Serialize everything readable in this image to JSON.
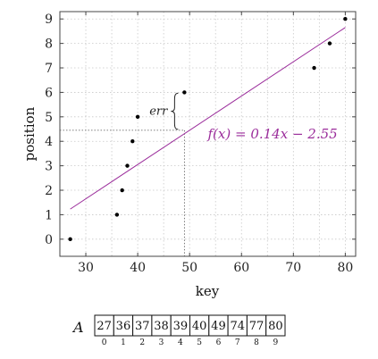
{
  "chart_data": {
    "type": "scatter",
    "xlabel": "key",
    "ylabel": "position",
    "xlim": [
      25,
      82
    ],
    "ylim": [
      -0.7,
      9.3
    ],
    "xticks": [
      30,
      40,
      50,
      60,
      70,
      80
    ],
    "yticks": [
      0,
      1,
      2,
      3,
      4,
      5,
      6,
      7,
      8,
      9
    ],
    "grid": true,
    "points": [
      {
        "x": 27,
        "y": 0
      },
      {
        "x": 36,
        "y": 1
      },
      {
        "x": 37,
        "y": 2
      },
      {
        "x": 38,
        "y": 3
      },
      {
        "x": 39,
        "y": 4
      },
      {
        "x": 40,
        "y": 5
      },
      {
        "x": 49,
        "y": 6
      },
      {
        "x": 74,
        "y": 7
      },
      {
        "x": 77,
        "y": 8
      },
      {
        "x": 80,
        "y": 9
      }
    ],
    "fit_line": {
      "slope": 0.14,
      "intercept": -2.55,
      "x_range": [
        27,
        80
      ],
      "label": "f(x) = 0.14x − 2.55",
      "color": "#9b2d9b"
    },
    "error_annotation": {
      "label": "err",
      "x": 49,
      "y_actual": 6,
      "y_predicted": 4.45
    }
  },
  "array": {
    "name": "A",
    "values": [
      "27",
      "36",
      "37",
      "38",
      "39",
      "40",
      "49",
      "74",
      "77",
      "80"
    ],
    "indices": [
      "0",
      "1",
      "2",
      "3",
      "4",
      "5",
      "6",
      "7",
      "8",
      "9"
    ]
  }
}
